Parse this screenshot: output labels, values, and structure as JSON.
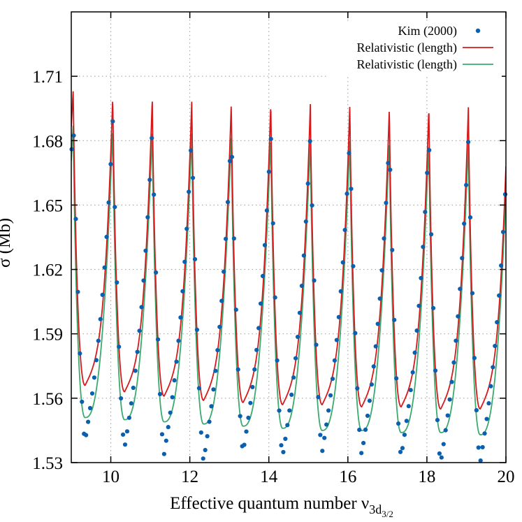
{
  "chart_data": {
    "type": "line",
    "xlabel": "Effective quantum number ν",
    "xlabel_subscript": "3d",
    "xlabel_subsubscript": "3/2",
    "ylabel": "σ (Mb)",
    "xlim": [
      9,
      20
    ],
    "ylim": [
      1.53,
      1.74
    ],
    "x_ticks": [
      10,
      12,
      14,
      16,
      18,
      20
    ],
    "y_ticks": [
      1.53,
      1.56,
      1.59,
      1.62,
      1.65,
      1.68,
      1.71
    ],
    "x_tick_labels": [
      "10",
      "12",
      "14",
      "16",
      "18",
      "20"
    ],
    "y_tick_labels": [
      "1.53",
      "1.56",
      "1.59",
      "1.62",
      "1.65",
      "1.68",
      "1.71"
    ],
    "grid": true,
    "legend_position": "top-right",
    "legend_labels": [
      "Kim (2000)",
      "Relativistic (length)",
      "Relativistic (length)"
    ],
    "colors": {
      "kim": "#0a5fae",
      "red": "#d7191c",
      "green": "#3aaa6e",
      "grid": "#9a9a9a"
    },
    "period": 1.0,
    "first_peak_x": 9.05,
    "series": [
      {
        "name": "Kim (2000)",
        "style": "points",
        "peaks": [
          1.692,
          1.689,
          1.686,
          1.685,
          1.685,
          1.684,
          1.683,
          1.682,
          1.682,
          1.682,
          1.681
        ],
        "minima": [
          1.54,
          1.537,
          1.534,
          1.531,
          1.535,
          1.533,
          1.535,
          1.534,
          1.533,
          1.53,
          1.53
        ],
        "minima_x": [
          9.35,
          10.38,
          11.37,
          12.38,
          13.38,
          14.38,
          15.38,
          16.38,
          17.38,
          18.38,
          19.38
        ]
      },
      {
        "name": "Relativistic (length)",
        "style": "line",
        "peaks": [
          1.704,
          1.701,
          1.7,
          1.699,
          1.698,
          1.698,
          1.697,
          1.697,
          1.696,
          1.696,
          1.696
        ],
        "minima": [
          1.566,
          1.563,
          1.561,
          1.559,
          1.558,
          1.557,
          1.557,
          1.556,
          1.556,
          1.555,
          1.555
        ],
        "end_value": 1.656
      },
      {
        "name": "Relativistic (length)",
        "style": "line",
        "peaks": [
          1.688,
          1.686,
          1.685,
          1.684,
          1.683,
          1.682,
          1.681,
          1.681,
          1.68,
          1.68,
          1.68
        ],
        "minima": [
          1.551,
          1.55,
          1.549,
          1.548,
          1.547,
          1.546,
          1.545,
          1.545,
          1.544,
          1.544,
          1.543
        ],
        "end_value": 1.62
      }
    ]
  }
}
